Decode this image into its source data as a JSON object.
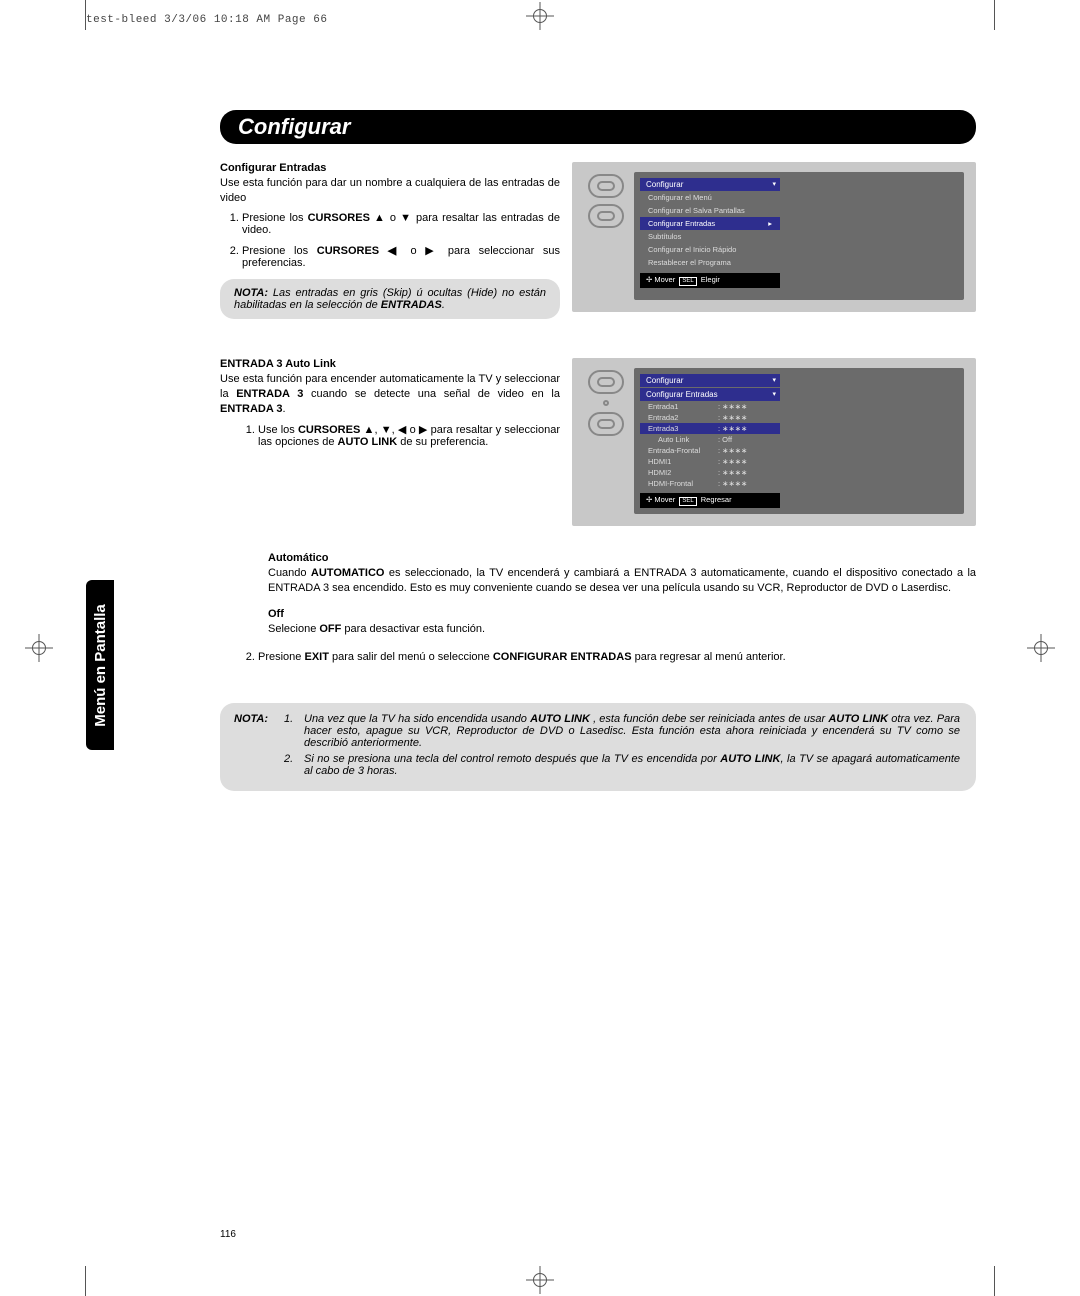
{
  "header_line": "test-bleed  3/3/06  10:18 AM  Page 66",
  "sidebar_label": "Menú en Pantalla",
  "page_number": "116",
  "title": "Configurar",
  "section1": {
    "heading": "Configurar Entradas",
    "intro": "Use esta función para dar un nombre a cualquiera de las entradas de video",
    "step1a": "Presione los ",
    "step1b": "CURSORES ▲",
    "step1c": " o ▼ para resaltar las entradas de video.",
    "step2a": "Presione los ",
    "step2b": "CURSORES ◀",
    "step2c": " o ▶ para seleccionar sus preferencias."
  },
  "note1": {
    "label": "NOTA:",
    "text": " Las entradas en gris (Skip) ú ocultas (Hide) no están habilitadas en la selección de ",
    "bold_end": "ENTRADAS",
    "period": "."
  },
  "osd1": {
    "title": "Configurar",
    "items": [
      "Configurar el Menú",
      "Configurar el Salva Pantallas",
      "Configurar Entradas",
      "Subtítulos",
      "Configurar el Inicio Rápido",
      "Restablecer el Programa"
    ],
    "selected_index": 2,
    "footer_move": "Mover",
    "footer_sel": "SEL",
    "footer_action": "Elegir"
  },
  "section2": {
    "heading": "ENTRADA 3 Auto Link",
    "intro_a": "Use esta función para encender automaticamente la TV y seleccionar la ",
    "intro_b": "ENTRADA 3",
    "intro_c": " cuando se detecte una señal de video en la ",
    "intro_d": "ENTRADA  3",
    "intro_e": ".",
    "step1a": "Use los ",
    "step1b": "CURSORES ▲",
    "step1c": ", ▼, ◀ o ▶ para resaltar y seleccionar las opciones de ",
    "step1d": "AUTO LINK",
    "step1e": "  de su preferencia."
  },
  "osd2": {
    "title": "Configurar",
    "subtitle": "Configurar Entradas",
    "rows": [
      {
        "k": "Entrada1",
        "v": ": ∗∗∗∗"
      },
      {
        "k": "Entrada2",
        "v": ": ∗∗∗∗"
      },
      {
        "k": "Entrada3",
        "v": ": ∗∗∗∗",
        "sel": true
      },
      {
        "k": "Auto Link",
        "v": ":  Off",
        "indent": true
      },
      {
        "k": "Entrada-Frontal",
        "v": ": ∗∗∗∗"
      },
      {
        "k": "HDMI1",
        "v": ": ∗∗∗∗"
      },
      {
        "k": "HDMI2",
        "v": ": ∗∗∗∗"
      },
      {
        "k": "HDMI-Frontal",
        "v": ": ∗∗∗∗"
      }
    ],
    "footer_move": "Mover",
    "footer_sel": "SEL",
    "footer_action": "Regresar"
  },
  "auto": {
    "heading": "Automático",
    "text_a": "Cuando ",
    "text_b": "AUTOMATICO",
    "text_c": " es seleccionado, la TV encenderá y cambiará a ENTRADA 3 automaticamente, cuando el dispositivo conectado a la ENTRADA 3 sea encendido. Esto es muy conveniente cuando se desea ver una película usando su VCR, Reproductor de DVD o Laserdisc."
  },
  "off": {
    "heading": "Off",
    "text_a": "Selecione ",
    "text_b": "OFF",
    "text_c": " para desactivar esta función."
  },
  "step2_bottom": {
    "a": "Presione ",
    "b": "EXIT",
    "c": " para salir del menú o seleccione ",
    "d": "CONFIGURAR ENTRADAS",
    "e": " para regresar al menú anterior."
  },
  "note2": {
    "label": "NOTA:",
    "n1_a": "Una vez que la TV ha sido encendida usando ",
    "n1_b": "AUTO LINK",
    "n1_c": " , esta función debe ser reiniciada antes de usar ",
    "n1_d": "AUTO LINK",
    "n1_e": " otra vez. Para hacer esto, apague su VCR, Reproductor de DVD o Lasedisc. Esta función esta ahora reiniciada y encenderá su TV como se describió anteriormente.",
    "n2_a": "Si no se presiona una tecla del control remoto después que la TV es encendida por ",
    "n2_b": "AUTO LINK",
    "n2_c": ", la TV se apagará automaticamente al cabo de 3 horas."
  }
}
